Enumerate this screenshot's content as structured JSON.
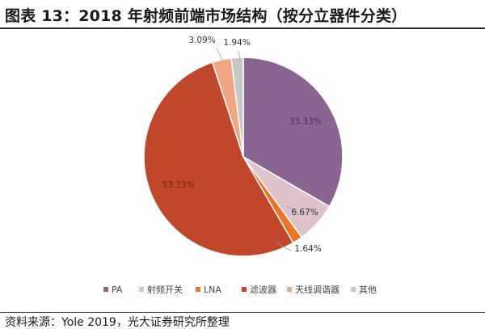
{
  "page": {
    "title": "图表 13：2018 年射频前端市场结构（按分立器件分类）",
    "source": "资料来源：Yole 2019，光大证券研究所整理"
  },
  "chart_data": {
    "type": "pie",
    "title": "图表 13：2018 年射频前端市场结构（按分立器件分类）",
    "start_angle_deg": 0,
    "direction": "clockwise",
    "legend_position": "bottom",
    "categories": [
      "PA",
      "射频开关",
      "LNA",
      "滤波器",
      "天线调谐器",
      "其他"
    ],
    "values": [
      33.33,
      6.67,
      1.64,
      53.33,
      3.09,
      1.94
    ],
    "labels": [
      "33.33%",
      "6.67%",
      "1.64%",
      "53.33%",
      "3.09%",
      "1.94%"
    ],
    "colors": [
      "#8a6592",
      "#dfc3cb",
      "#ea7524",
      "#c0472a",
      "#f2a581",
      "#c8c8c8"
    ]
  }
}
